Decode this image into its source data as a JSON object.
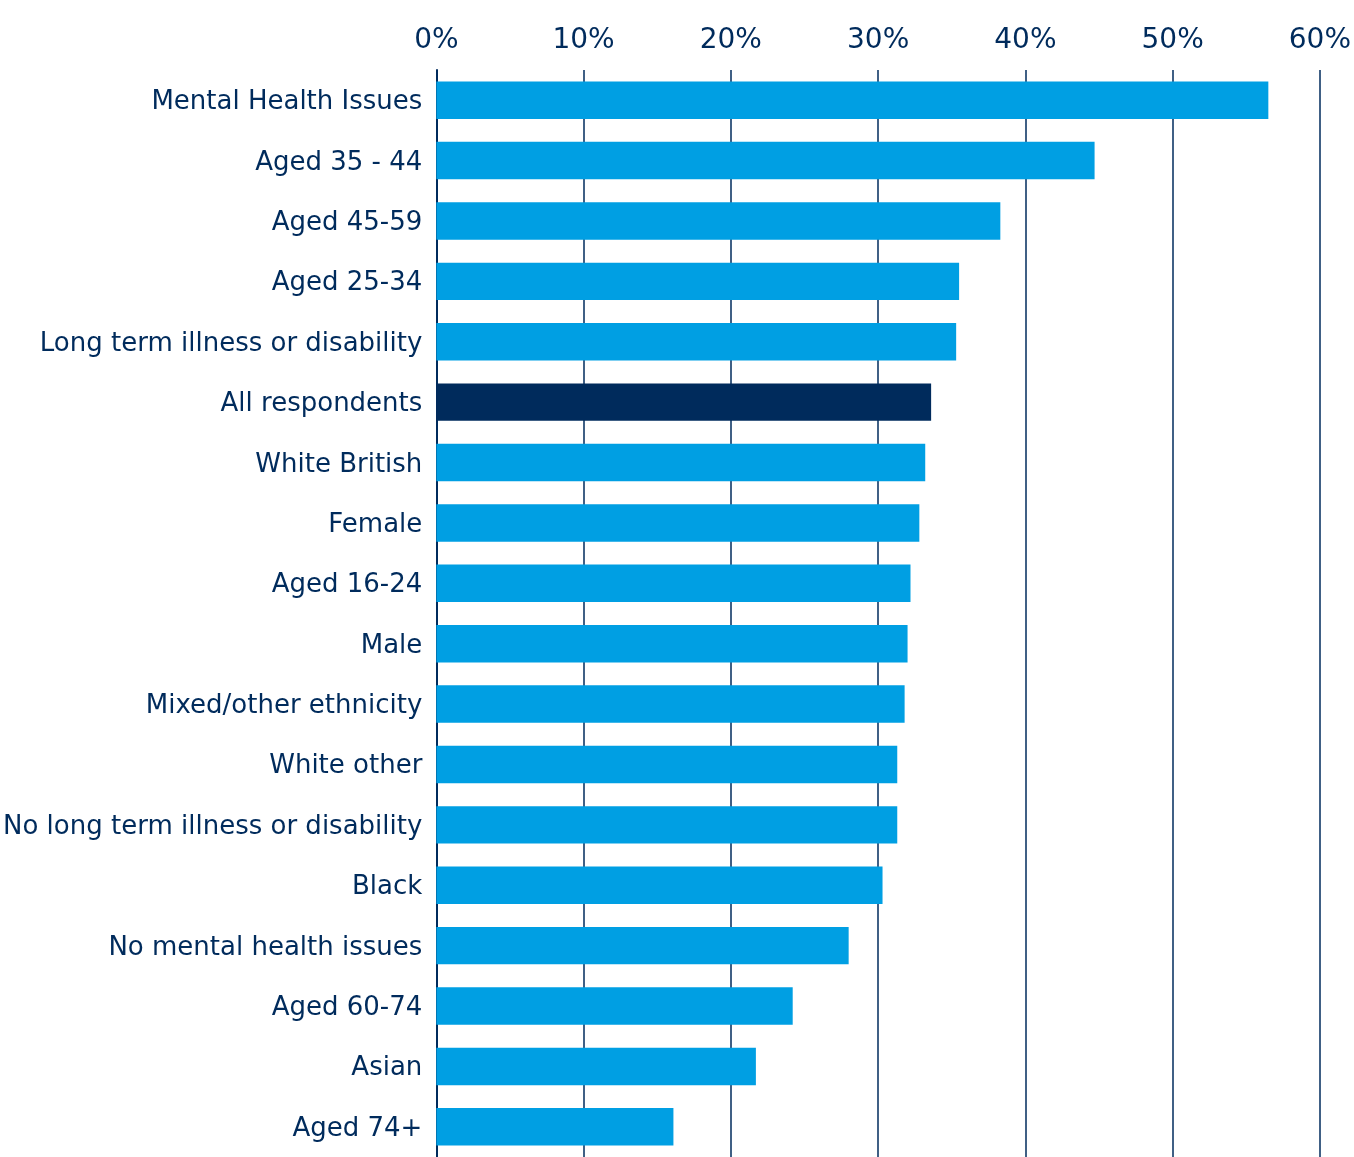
{
  "chart_data": {
    "type": "bar",
    "orientation": "horizontal",
    "categories": [
      "Mental Health Issues",
      "Aged 35 - 44",
      "Aged 45-59",
      "Aged 25-34",
      "Long term illness or disability",
      "All respondents",
      "White British",
      "Female",
      "Aged 16-24",
      "Male",
      "Mixed/other ethnicity",
      "White other",
      "No long term illness or disability",
      "Black",
      "No mental health issues",
      "Aged 60-74",
      "Asian",
      "Aged 74+"
    ],
    "values": [
      56.5,
      44.7,
      38.3,
      35.5,
      35.3,
      33.6,
      33.2,
      32.8,
      32.2,
      32.0,
      31.8,
      31.3,
      31.3,
      30.3,
      28.0,
      24.2,
      21.7,
      16.1
    ],
    "colors": [
      "#009fe3",
      "#009fe3",
      "#009fe3",
      "#009fe3",
      "#009fe3",
      "#002b5c",
      "#009fe3",
      "#009fe3",
      "#009fe3",
      "#009fe3",
      "#009fe3",
      "#009fe3",
      "#009fe3",
      "#009fe3",
      "#009fe3",
      "#009fe3",
      "#009fe3",
      "#009fe3"
    ],
    "xlim": [
      0,
      60
    ],
    "xticks": [
      {
        "value": 0,
        "label": "0%"
      },
      {
        "value": 10,
        "label": "10%"
      },
      {
        "value": 20,
        "label": "20%"
      },
      {
        "value": 30,
        "label": "30%"
      },
      {
        "value": 40,
        "label": "40%"
      },
      {
        "value": 50,
        "label": "50%"
      },
      {
        "value": 60,
        "label": "60%"
      }
    ],
    "grid": "x"
  }
}
